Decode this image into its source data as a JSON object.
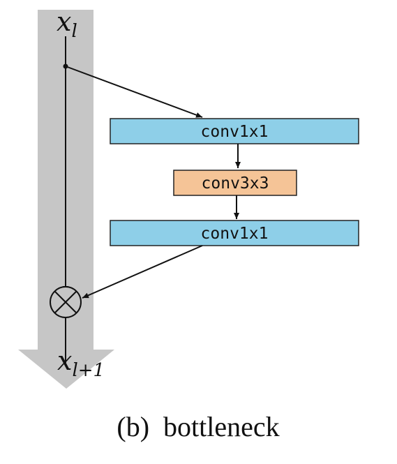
{
  "diagram": {
    "input_label": {
      "base": "x",
      "sub": "l"
    },
    "output_label": {
      "base": "x",
      "sub": "l+1"
    },
    "blocks": [
      {
        "label": "conv1x1",
        "fill": "#8ecfe8"
      },
      {
        "label": "conv3x3",
        "fill": "#f5c497"
      },
      {
        "label": "conv1x1",
        "fill": "#8ecfe8"
      }
    ],
    "merge_op": "⊗",
    "colors": {
      "shortcut_band": "#c6c6c6",
      "block_border": "#222222",
      "line": "#111111"
    }
  },
  "caption": "(b)  bottleneck"
}
